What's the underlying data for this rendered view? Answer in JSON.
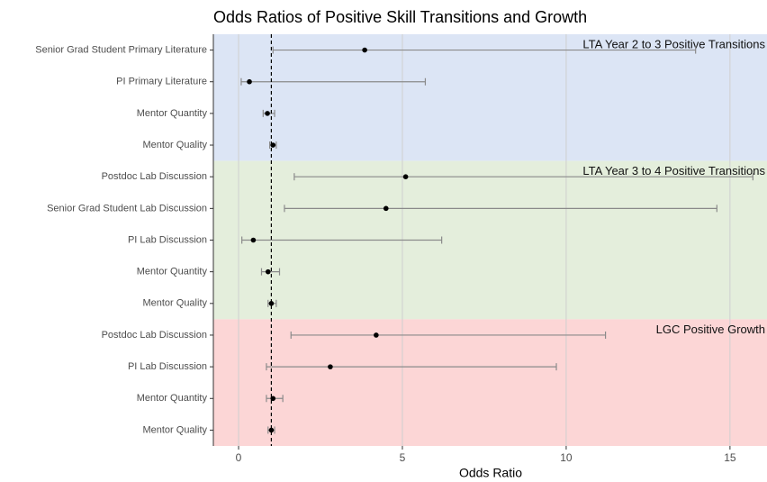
{
  "chart_data": {
    "type": "forest",
    "title": "Odds Ratios of Positive Skill Transitions and Growth",
    "x_label": "Odds Ratio",
    "xlim": [
      -0.77,
      16.13
    ],
    "xticks": [
      0,
      5,
      10,
      15
    ],
    "grid": true,
    "reference_line": 1,
    "groups": [
      {
        "label": "LTA Year 2 to 3 Positive Transitions",
        "color": "#dce5f5",
        "categories": [
          "Senior Grad Student Primary Literature",
          "PI Primary Literature",
          "Mentor Quantity",
          "Mentor Quality"
        ],
        "values": [
          3.85,
          0.33,
          0.88,
          1.05
        ],
        "lower": [
          1.05,
          0.08,
          0.75,
          0.95
        ],
        "upper": [
          13.95,
          5.7,
          1.1,
          1.15
        ]
      },
      {
        "label": "LTA Year 3 to 4 Positive Transitions",
        "color": "#e4eedc",
        "categories": [
          "Postdoc Lab Discussion",
          "Senior Grad Student Lab Discussion",
          "PI Lab Discussion",
          "Mentor Quantity",
          "Mentor Quality"
        ],
        "values": [
          5.1,
          4.5,
          0.45,
          0.9,
          1.0
        ],
        "lower": [
          1.7,
          1.4,
          0.1,
          0.7,
          0.9
        ],
        "upper": [
          15.7,
          14.6,
          6.2,
          1.25,
          1.15
        ]
      },
      {
        "label": "LGC Positive Growth",
        "color": "#fcd6d6",
        "categories": [
          "Postdoc Lab Discussion",
          "PI Lab Discussion",
          "Mentor Quantity",
          "Mentor Quality"
        ],
        "values": [
          4.2,
          2.8,
          1.05,
          1.0
        ],
        "lower": [
          1.6,
          0.85,
          0.85,
          0.9
        ],
        "upper": [
          11.2,
          9.7,
          1.35,
          1.1
        ]
      }
    ]
  }
}
